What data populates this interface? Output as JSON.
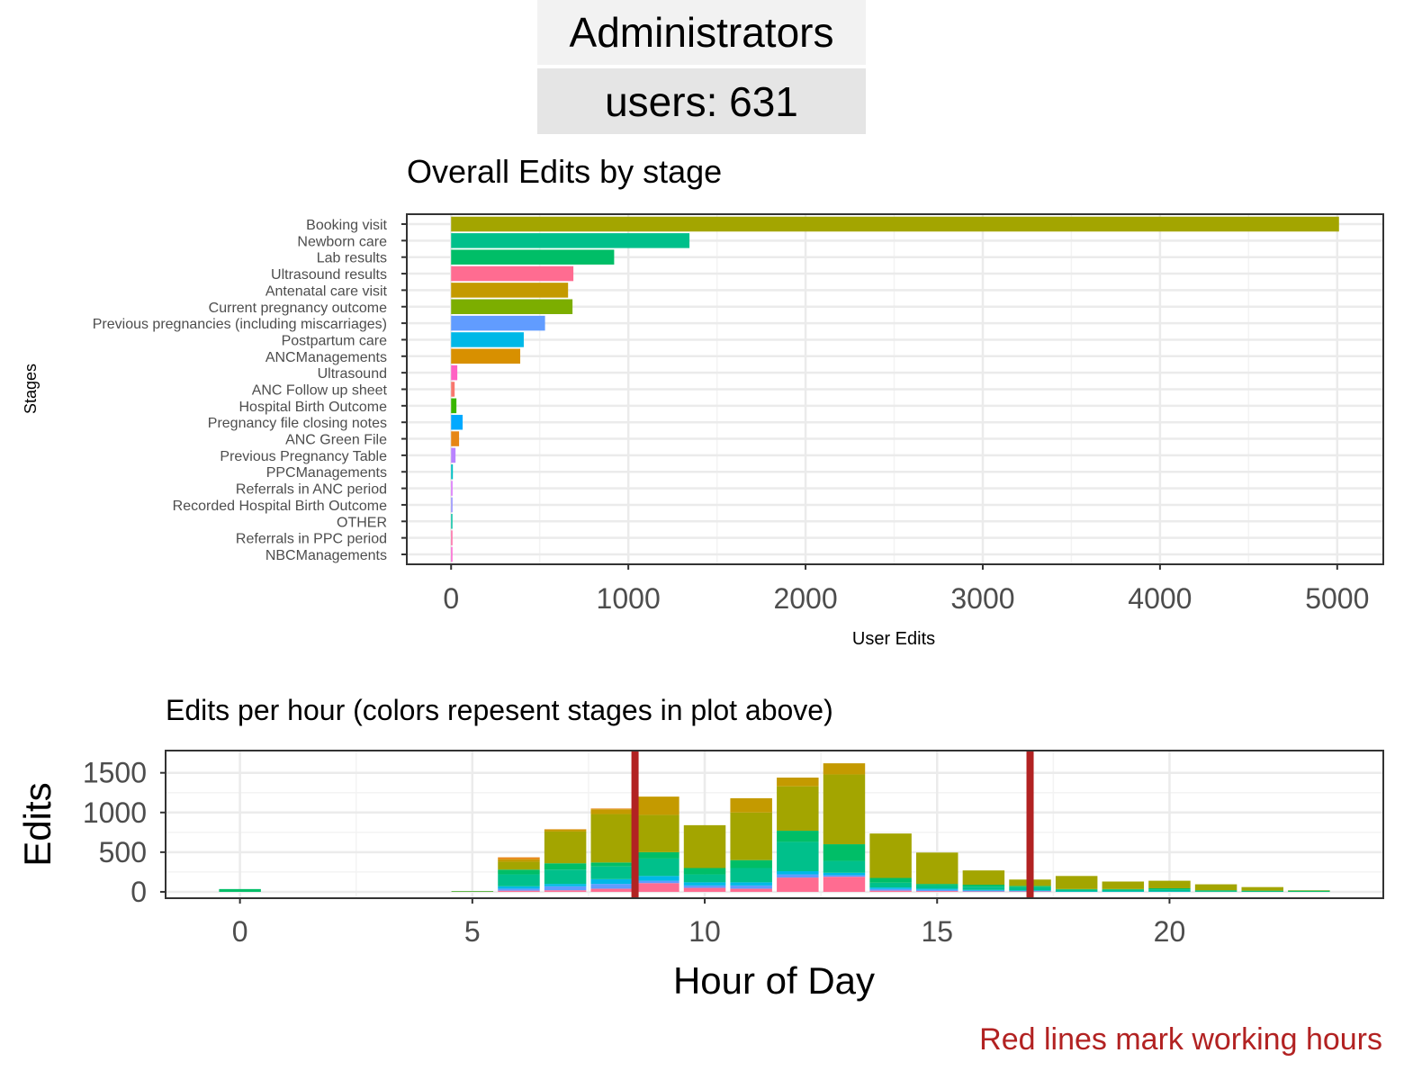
{
  "header": {
    "title": "Administrators",
    "users_label": "users: 631"
  },
  "caption": "Red lines mark working hours",
  "colors": {
    "working_hours_line": "#b22222"
  },
  "chart_data": [
    {
      "type": "bar",
      "orientation": "horizontal",
      "title": "Overall Edits by stage",
      "xlabel": "User Edits",
      "ylabel": "Stages",
      "xlim": [
        -250,
        5260
      ],
      "xticks": [
        0,
        1000,
        2000,
        3000,
        4000,
        5000
      ],
      "grid": true,
      "categories": [
        "Booking visit",
        "Newborn care",
        "Lab results",
        "Ultrasound results",
        "Antenatal care visit",
        "Current pregnancy outcome",
        "Previous pregnancies (including miscarriages)",
        "Postpartum care",
        "ANCManagements",
        "Ultrasound",
        "ANC Follow up sheet",
        "Hospital Birth Outcome",
        "Pregnancy file closing notes",
        "ANC Green File",
        "Previous Pregnancy Table",
        "PPCManagements",
        "Referrals in ANC period",
        "Recorded Hospital Birth Outcome",
        "OTHER",
        "Referrals in PPC period",
        "NBCManagements"
      ],
      "values": [
        5010,
        1345,
        920,
        690,
        660,
        685,
        530,
        410,
        390,
        35,
        20,
        30,
        65,
        45,
        25,
        10,
        8,
        8,
        6,
        5,
        2
      ],
      "colors": [
        "#a3a500",
        "#00c08b",
        "#00be67",
        "#ff6c91",
        "#c49a00",
        "#7cae00",
        "#619cff",
        "#00b8e7",
        "#d89000",
        "#ff61c3",
        "#f8766d",
        "#39b600",
        "#00a9ff",
        "#e68613",
        "#b983ff",
        "#00bfc4",
        "#db72fb",
        "#9590ff",
        "#00c1a3",
        "#ff67a4",
        "#fd61d1"
      ]
    },
    {
      "type": "bar",
      "stacked": true,
      "title": "Edits per hour (colors repesent stages in plot above)",
      "xlabel": "Hour of Day",
      "ylabel": "Edits",
      "xlim": [
        -1.6,
        24.6
      ],
      "ylim": [
        -80,
        1780
      ],
      "xticks": [
        0,
        5,
        10,
        15,
        20
      ],
      "yticks": [
        0,
        500,
        1000,
        1500
      ],
      "grid": true,
      "working_hours": [
        8.5,
        17
      ],
      "hours": [
        0,
        1,
        2,
        3,
        4,
        5,
        6,
        7,
        8,
        9,
        10,
        11,
        12,
        13,
        14,
        15,
        16,
        17,
        18,
        19,
        20,
        21,
        22,
        23
      ],
      "series": [
        {
          "color": "#ff6c91",
          "values": [
            0,
            0,
            0,
            0,
            0,
            0,
            15,
            20,
            40,
            110,
            50,
            40,
            180,
            190,
            15,
            10,
            5,
            5,
            0,
            0,
            0,
            0,
            0,
            0
          ]
        },
        {
          "color": "#619cff",
          "values": [
            0,
            0,
            0,
            0,
            0,
            0,
            25,
            50,
            60,
            30,
            30,
            40,
            40,
            20,
            20,
            15,
            10,
            5,
            0,
            0,
            0,
            0,
            0,
            0
          ]
        },
        {
          "color": "#00b8e7",
          "values": [
            0,
            0,
            0,
            0,
            0,
            0,
            30,
            30,
            60,
            60,
            40,
            40,
            40,
            30,
            20,
            15,
            10,
            10,
            5,
            5,
            5,
            0,
            0,
            0
          ]
        },
        {
          "color": "#00c08b",
          "values": [
            0,
            0,
            0,
            0,
            0,
            0,
            150,
            180,
            160,
            220,
            100,
            180,
            370,
            150,
            60,
            40,
            40,
            40,
            20,
            20,
            25,
            10,
            5,
            0
          ]
        },
        {
          "color": "#00be67",
          "values": [
            35,
            0,
            0,
            0,
            0,
            5,
            60,
            80,
            50,
            80,
            80,
            100,
            140,
            210,
            60,
            20,
            25,
            15,
            10,
            10,
            15,
            10,
            10,
            15
          ]
        },
        {
          "color": "#a3a500",
          "values": [
            0,
            0,
            0,
            0,
            0,
            5,
            100,
            400,
            610,
            470,
            540,
            600,
            560,
            880,
            560,
            395,
            180,
            80,
            165,
            95,
            95,
            75,
            45,
            5
          ]
        },
        {
          "color": "#c49a00",
          "values": [
            0,
            0,
            0,
            0,
            0,
            0,
            30,
            25,
            60,
            230,
            0,
            180,
            110,
            140,
            0,
            0,
            0,
            0,
            0,
            0,
            0,
            0,
            0,
            0
          ]
        },
        {
          "color": "#e68613",
          "values": [
            0,
            0,
            0,
            0,
            0,
            0,
            25,
            5,
            10,
            0,
            0,
            0,
            0,
            0,
            0,
            0,
            0,
            0,
            0,
            0,
            0,
            0,
            0,
            0
          ]
        }
      ]
    }
  ]
}
